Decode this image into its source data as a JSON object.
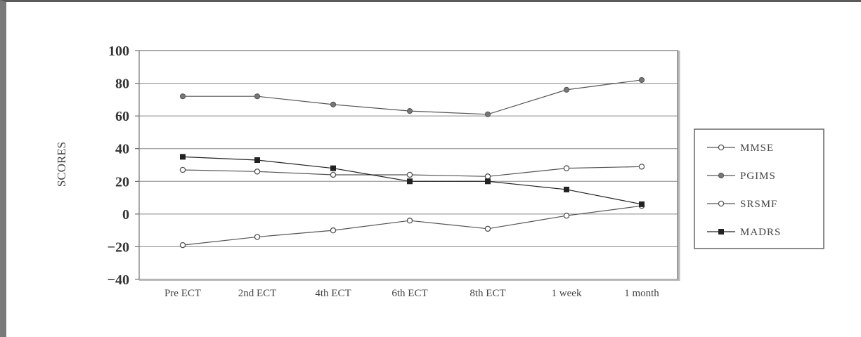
{
  "chart_data": {
    "type": "line",
    "title": "",
    "xlabel": "",
    "ylabel": "SCORES",
    "ylim": [
      -40,
      100
    ],
    "yticks": [
      100,
      80,
      60,
      40,
      20,
      0,
      -20,
      -40
    ],
    "grid": "horizontal",
    "legend_position": "right",
    "categories": [
      "Pre ECT",
      "2nd ECT",
      "4th ECT",
      "6th ECT",
      "8th ECT",
      "1 week",
      "1 month"
    ],
    "series": [
      {
        "name": "MMSE",
        "marker": "open-circle",
        "color": "#555555",
        "values": [
          -19,
          -14,
          -10,
          -4,
          -9,
          -1,
          5
        ]
      },
      {
        "name": "PGIMS",
        "marker": "filled-circle",
        "color": "#555555",
        "values": [
          72,
          72,
          67,
          63,
          61,
          76,
          82
        ]
      },
      {
        "name": "SRSMF",
        "marker": "open-circle",
        "color": "#555555",
        "values": [
          27,
          26,
          24,
          24,
          23,
          28,
          29
        ]
      },
      {
        "name": "MADRS",
        "marker": "filled-square",
        "color": "#222222",
        "values": [
          35,
          33,
          28,
          20,
          20,
          15,
          6
        ]
      }
    ]
  }
}
